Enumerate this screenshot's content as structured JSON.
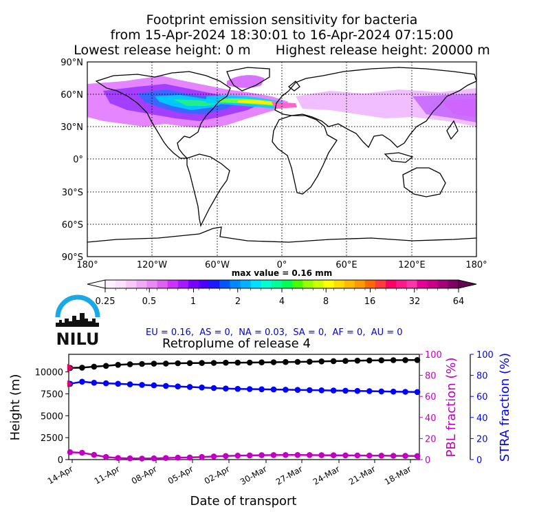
{
  "header": {
    "line1": "Footprint emission sensitivity for bacteria",
    "line2": "from 15-Apr-2024 18:30:01 to 16-Apr-2024 07:15:00",
    "lowest": "Lowest release height: 0 m",
    "highest": "Highest release height: 20000 m"
  },
  "map": {
    "lat_ticks": [
      "90°N",
      "60°N",
      "30°N",
      "0°",
      "30°S",
      "60°S",
      "90°S"
    ],
    "lon_ticks": [
      "180°",
      "120°W",
      "60°W",
      "0°",
      "60°E",
      "120°E",
      "180°"
    ],
    "max_value_label": "max value = 0.16 mm",
    "colorbar_ticks": [
      "0.25",
      "0.5",
      "1",
      "2",
      "4",
      "8",
      "16",
      "32",
      "64"
    ],
    "colorbar_unit": "mm"
  },
  "logo": {
    "text": "NILU"
  },
  "region_scores": "EU = 0.16,  AS = 0,  NA = 0.03,  SA = 0,  AF = 0,  AU = 0",
  "retroplume_title": "Retroplume of release 4",
  "chart_data": {
    "type": "line",
    "title": "Retroplume of release 4",
    "xlabel": "Date of transport",
    "ylabel": "Height (m)",
    "ylabel_right1": "PBL fraction (%)",
    "ylabel_right2": "STRA fraction (%)",
    "x_ticks": [
      "14-Apr",
      "11-Apr",
      "08-Apr",
      "05-Apr",
      "02-Apr",
      "30-Mar",
      "27-Mar",
      "24-Mar",
      "21-Mar",
      "18-Mar"
    ],
    "ylim": [
      0,
      12000
    ],
    "y_ticks": [
      0,
      2500,
      5000,
      7500,
      10000
    ],
    "ylim_right": [
      0,
      100
    ],
    "y_ticks_right": [
      0,
      20,
      40,
      60,
      80,
      100
    ],
    "series": [
      {
        "axis": "height",
        "color": "#000000",
        "values": [
          10450,
          10480,
          10600,
          10680,
          10800,
          10870,
          10900,
          10930,
          10950,
          10980,
          11000,
          11010,
          11020,
          11040,
          11050,
          11060,
          11080,
          11100,
          11120,
          11140,
          11160,
          11190,
          11220,
          11250,
          11280,
          11300,
          11320,
          11330,
          11340,
          11350
        ]
      },
      {
        "axis": "stra",
        "color": "#0000ff",
        "values": [
          72,
          74,
          73,
          72.5,
          72,
          71.5,
          71,
          70.5,
          70,
          69.5,
          69,
          68.5,
          68,
          67.5,
          67.2,
          67,
          66.8,
          66.6,
          66.4,
          66.2,
          66,
          65.8,
          65.6,
          65.4,
          65.2,
          65,
          64.8,
          64.6,
          64.4,
          64.2
        ]
      },
      {
        "axis": "pbl",
        "color": "#c000c0",
        "values": [
          7,
          6.5,
          4.5,
          2.5,
          1.5,
          1.2,
          1,
          1.2,
          1.5,
          1.8,
          2,
          2.5,
          3,
          3.4,
          3.7,
          4,
          4.2,
          4.3,
          4.4,
          4.4,
          4.3,
          4.2,
          4.1,
          4,
          3.9,
          3.8,
          3.7,
          3.6,
          3.5,
          3.4
        ]
      }
    ]
  },
  "colors": {
    "height_series": "#000000",
    "stra_series": "#0000ff",
    "pbl_series": "#c000c0",
    "release_marker": "#e0006a"
  }
}
